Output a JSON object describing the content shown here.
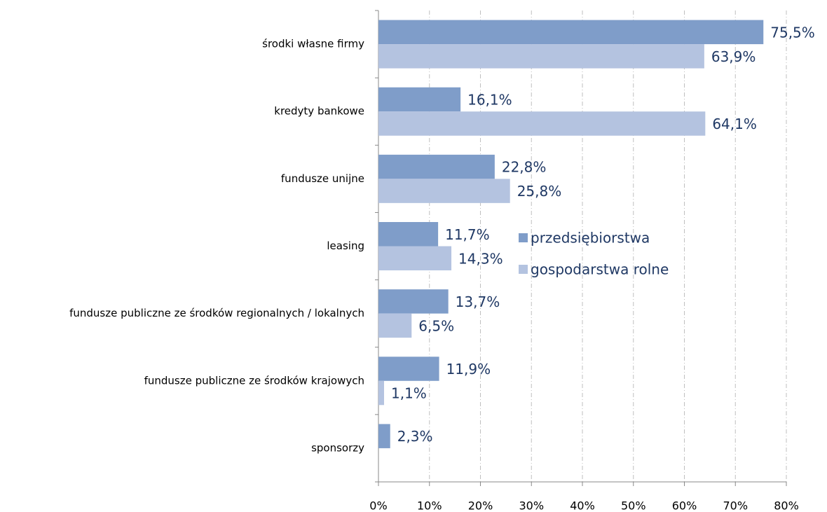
{
  "chart_data": {
    "type": "bar",
    "orientation": "horizontal",
    "categories": [
      "środki  własne firmy",
      "kredyty bankowe",
      "fundusze unijne",
      "leasing",
      "fundusze publiczne  ze środków regionalnych  /  lokalnych",
      "fundusze publiczne  ze środków krajowych",
      "sponsorzy"
    ],
    "series": [
      {
        "name": "przedsiębiorstwa",
        "color": "#7f9dc9",
        "values": [
          75.5,
          16.1,
          22.8,
          11.7,
          13.7,
          11.9,
          2.3
        ],
        "value_labels": [
          "75,5%",
          "16,1%",
          "22,8%",
          "11,7%",
          "13,7%",
          "11,9%",
          "2,3%"
        ]
      },
      {
        "name": "gospodarstwa rolne",
        "color": "#b4c3e0",
        "values": [
          63.9,
          64.1,
          25.8,
          14.3,
          6.5,
          1.1,
          null
        ],
        "value_labels": [
          "63,9%",
          "64,1%",
          "25,8%",
          "14,3%",
          "6,5%",
          "1,1%",
          null
        ]
      }
    ],
    "xlim": [
      0,
      80
    ],
    "xticks": [
      {
        "value": 0,
        "label": "0%"
      },
      {
        "value": 10,
        "label": "10%"
      },
      {
        "value": 20,
        "label": "20%"
      },
      {
        "value": 30,
        "label": "30%"
      },
      {
        "value": 40,
        "label": "40%"
      },
      {
        "value": 50,
        "label": "50%"
      },
      {
        "value": 60,
        "label": "60%"
      },
      {
        "value": 70,
        "label": "70%"
      },
      {
        "value": 80,
        "label": "80%"
      }
    ],
    "grid": true
  }
}
